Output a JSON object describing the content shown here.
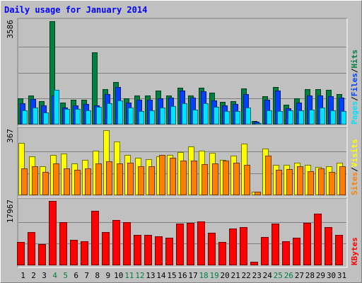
{
  "chart_data": {
    "type": "bar",
    "title": "Daily usage for January 2014",
    "categories": [
      "1",
      "2",
      "3",
      "4",
      "5",
      "6",
      "7",
      "8",
      "9",
      "10",
      "11",
      "12",
      "13",
      "14",
      "15",
      "16",
      "17",
      "18",
      "19",
      "20",
      "21",
      "22",
      "23",
      "24",
      "25",
      "26",
      "27",
      "28",
      "29",
      "30",
      "31"
    ],
    "weekend_days": [
      "4",
      "5",
      "11",
      "12",
      "18",
      "19",
      "25",
      "26"
    ],
    "panels": [
      {
        "name": "hits-files-pages",
        "ymax_label": "3586",
        "ymax": 3586,
        "right_labels": [
          "Pages",
          "Files",
          "Hits"
        ],
        "series": [
          {
            "name": "Hits",
            "color": "#008040",
            "values": [
              880,
              1000,
              780,
              3586,
              750,
              830,
              830,
              2500,
              1200,
              1460,
              880,
              1000,
              1000,
              1160,
              990,
              1260,
              1000,
              1260,
              1080,
              760,
              780,
              1230,
              100,
              960,
              1290,
              660,
              880,
              1200,
              1200,
              1190,
              1040
            ]
          },
          {
            "name": "Files",
            "color": "#0040ff",
            "values": [
              720,
              860,
              640,
              1000,
              560,
              650,
              690,
              650,
              1050,
              1280,
              740,
              850,
              840,
              890,
              920,
              1160,
              910,
              1140,
              810,
              640,
              690,
              1040,
              70,
              850,
              1170,
              540,
              750,
              1000,
              1000,
              970,
              910
            ]
          },
          {
            "name": "Pages",
            "color": "#00e0ff",
            "values": [
              480,
              560,
              400,
              1180,
              520,
              520,
              480,
              600,
              720,
              820,
              560,
              440,
              480,
              580,
              620,
              720,
              500,
              720,
              600,
              440,
              440,
              560,
              20,
              480,
              440,
              480,
              480,
              500,
              560,
              480,
              440
            ]
          }
        ]
      },
      {
        "name": "visits-sites",
        "ymax_label": "367",
        "ymax": 367,
        "right_labels": [
          "Sites",
          "Visits"
        ],
        "series": [
          {
            "name": "Visits",
            "color": "#ffff00",
            "values": [
              296,
              219,
              162,
              225,
              233,
              179,
              197,
              249,
              367,
              302,
              225,
              210,
              201,
              219,
              225,
              243,
              275,
              249,
              239,
              198,
              222,
              292,
              18,
              263,
              170,
              170,
              182,
              170,
              158,
              162,
              180
            ]
          },
          {
            "name": "Sites",
            "color": "#ff8000",
            "values": [
              149,
              162,
              131,
              179,
              149,
              140,
              149,
              178,
              188,
              179,
              181,
              162,
              162,
              225,
              208,
              195,
              193,
              174,
              177,
              194,
              180,
              170,
              18,
              222,
              140,
              146,
              162,
              133,
              149,
              131,
              162
            ]
          }
        ]
      },
      {
        "name": "kbytes",
        "ymax_label": "17967",
        "ymax": 17967,
        "right_labels": [
          "KBytes"
        ],
        "series": [
          {
            "name": "KBytes",
            "color": "#ff0000",
            "values": [
              6350,
              9190,
              5830,
              17967,
              11930,
              6940,
              6650,
              15180,
              9280,
              12540,
              11930,
              8320,
              8460,
              7910,
              7500,
              11650,
              11790,
              12170,
              8890,
              6460,
              10150,
              10650,
              700,
              7790,
              11510,
              6620,
              7650,
              11790,
              14420,
              10650,
              8440
            ]
          }
        ]
      }
    ]
  }
}
